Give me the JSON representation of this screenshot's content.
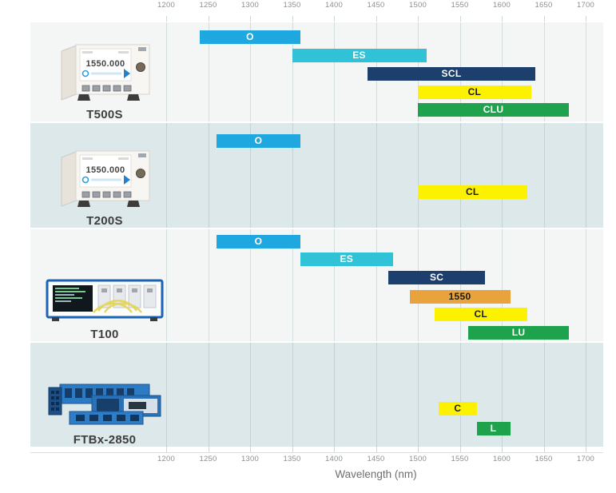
{
  "axis": {
    "title": "Wavelength (nm)"
  },
  "chart_data": {
    "type": "bar",
    "variant": "horizontal-wavelength-range-bands",
    "title": "",
    "xlabel": "Wavelength (nm)",
    "xlim": [
      1200,
      1700
    ],
    "x_ticks": [
      1200,
      1250,
      1300,
      1350,
      1400,
      1450,
      1500,
      1550,
      1600,
      1650,
      1700
    ],
    "grid": true,
    "legend": "none",
    "row_background_light": "#f4f6f6",
    "row_background_dark": "#dce8e9",
    "rows": [
      {
        "product": "T500S",
        "screen_text": "1550.000",
        "bands": [
          {
            "label": "O",
            "start": 1240,
            "end": 1360,
            "color": "#1FA8E0",
            "text": "#ffffff",
            "y": 10
          },
          {
            "label": "ES",
            "start": 1350,
            "end": 1510,
            "color": "#30C3D7",
            "text": "#ffffff",
            "y": 33
          },
          {
            "label": "SCL",
            "start": 1440,
            "end": 1640,
            "color": "#1C3F6E",
            "text": "#ffffff",
            "y": 56
          },
          {
            "label": "CL",
            "start": 1500,
            "end": 1635,
            "color": "#FCF200",
            "text": "#1a1a1a",
            "y": 79
          },
          {
            "label": "CLU",
            "start": 1500,
            "end": 1680,
            "color": "#1FA24C",
            "text": "#ffffff",
            "y": 101
          }
        ]
      },
      {
        "product": "T200S",
        "screen_text": "1550.000",
        "bands": [
          {
            "label": "O",
            "start": 1260,
            "end": 1360,
            "color": "#1FA8E0",
            "text": "#ffffff",
            "y": 14
          },
          {
            "label": "CL",
            "start": 1500,
            "end": 1630,
            "color": "#FCF200",
            "text": "#1a1a1a",
            "y": 78
          }
        ]
      },
      {
        "product": "T100",
        "bands": [
          {
            "label": "O",
            "start": 1260,
            "end": 1360,
            "color": "#1FA8E0",
            "text": "#ffffff",
            "y": 7
          },
          {
            "label": "ES",
            "start": 1360,
            "end": 1470,
            "color": "#30C3D7",
            "text": "#ffffff",
            "y": 29
          },
          {
            "label": "SC",
            "start": 1465,
            "end": 1580,
            "color": "#1C3F6E",
            "text": "#ffffff",
            "y": 52
          },
          {
            "label": "1550",
            "start": 1490,
            "end": 1610,
            "color": "#E8A33C",
            "text": "#1a1a1a",
            "y": 76
          },
          {
            "label": "CL",
            "start": 1520,
            "end": 1630,
            "color": "#FCF200",
            "text": "#1a1a1a",
            "y": 98
          },
          {
            "label": "LU",
            "start": 1560,
            "end": 1680,
            "color": "#1FA24C",
            "text": "#ffffff",
            "y": 121
          }
        ]
      },
      {
        "product": "FTBx-2850",
        "bands": [
          {
            "label": "C",
            "start": 1525,
            "end": 1570,
            "color": "#FCF200",
            "text": "#1a1a1a",
            "y": 74
          },
          {
            "label": "L",
            "start": 1570,
            "end": 1610,
            "color": "#1FA24C",
            "text": "#ffffff",
            "y": 99
          }
        ]
      }
    ]
  }
}
